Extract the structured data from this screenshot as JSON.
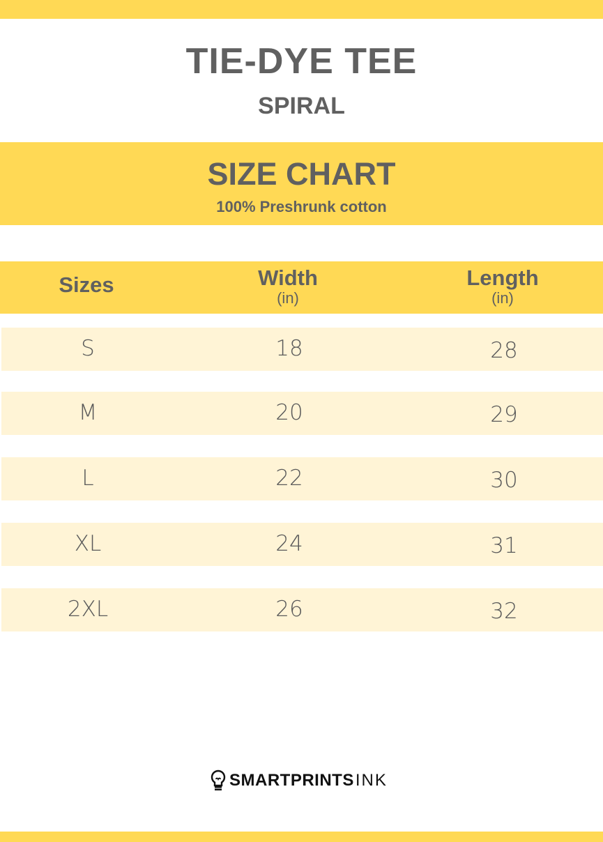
{
  "header": {
    "title": "TIE-DYE TEE",
    "subtitle": "SPIRAL"
  },
  "banner": {
    "title": "SIZE CHART",
    "subtitle": "100% Preshrunk cotton"
  },
  "table": {
    "columns": [
      {
        "label": "Sizes",
        "unit": ""
      },
      {
        "label": "Width",
        "unit": "(in)"
      },
      {
        "label": "Length",
        "unit": "(in)"
      }
    ],
    "rows": [
      [
        "S",
        "18",
        "28"
      ],
      [
        "M",
        "20",
        "29"
      ],
      [
        "L",
        "22",
        "30"
      ],
      [
        "XL",
        "24",
        "31"
      ],
      [
        "2XL",
        "26",
        "32"
      ]
    ]
  },
  "footer": {
    "brand_bold": "SMARTPRINTS",
    "brand_light": "INK",
    "icon": "lightbulb-icon"
  },
  "colors": {
    "accent": "#FFD955",
    "row_bg": "#FFF4D6",
    "text": "#606060"
  }
}
